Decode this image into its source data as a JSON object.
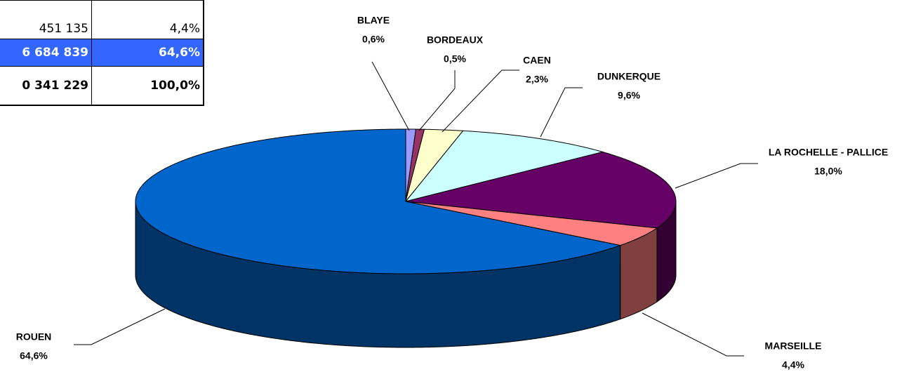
{
  "table": {
    "rows": [
      [
        "451 135",
        "4,4%"
      ],
      [
        "6 684 839",
        "64,6%"
      ],
      [
        "0 341 229",
        "100,0%"
      ]
    ]
  },
  "chart_data": {
    "type": "pie",
    "categories": [
      "BLAYE",
      "BORDEAUX",
      "CAEN",
      "DUNKERQUE",
      "LA ROCHELLE - PALLICE",
      "MARSEILLE",
      "ROUEN"
    ],
    "values": [
      0.6,
      0.5,
      2.3,
      9.6,
      18.0,
      4.4,
      64.6
    ],
    "value_labels": [
      "0,6%",
      "0,5%",
      "2,3%",
      "9,6%",
      "18,0%",
      "4,4%",
      "64,6%"
    ],
    "colors": [
      "#9999ff",
      "#993366",
      "#ffffcc",
      "#ccffff",
      "#660066",
      "#ff8080",
      "#0066cc"
    ],
    "side_colors": [
      "#4d4d80",
      "#4d1a33",
      "#808066",
      "#668080",
      "#330033",
      "#804040",
      "#003366"
    ]
  }
}
